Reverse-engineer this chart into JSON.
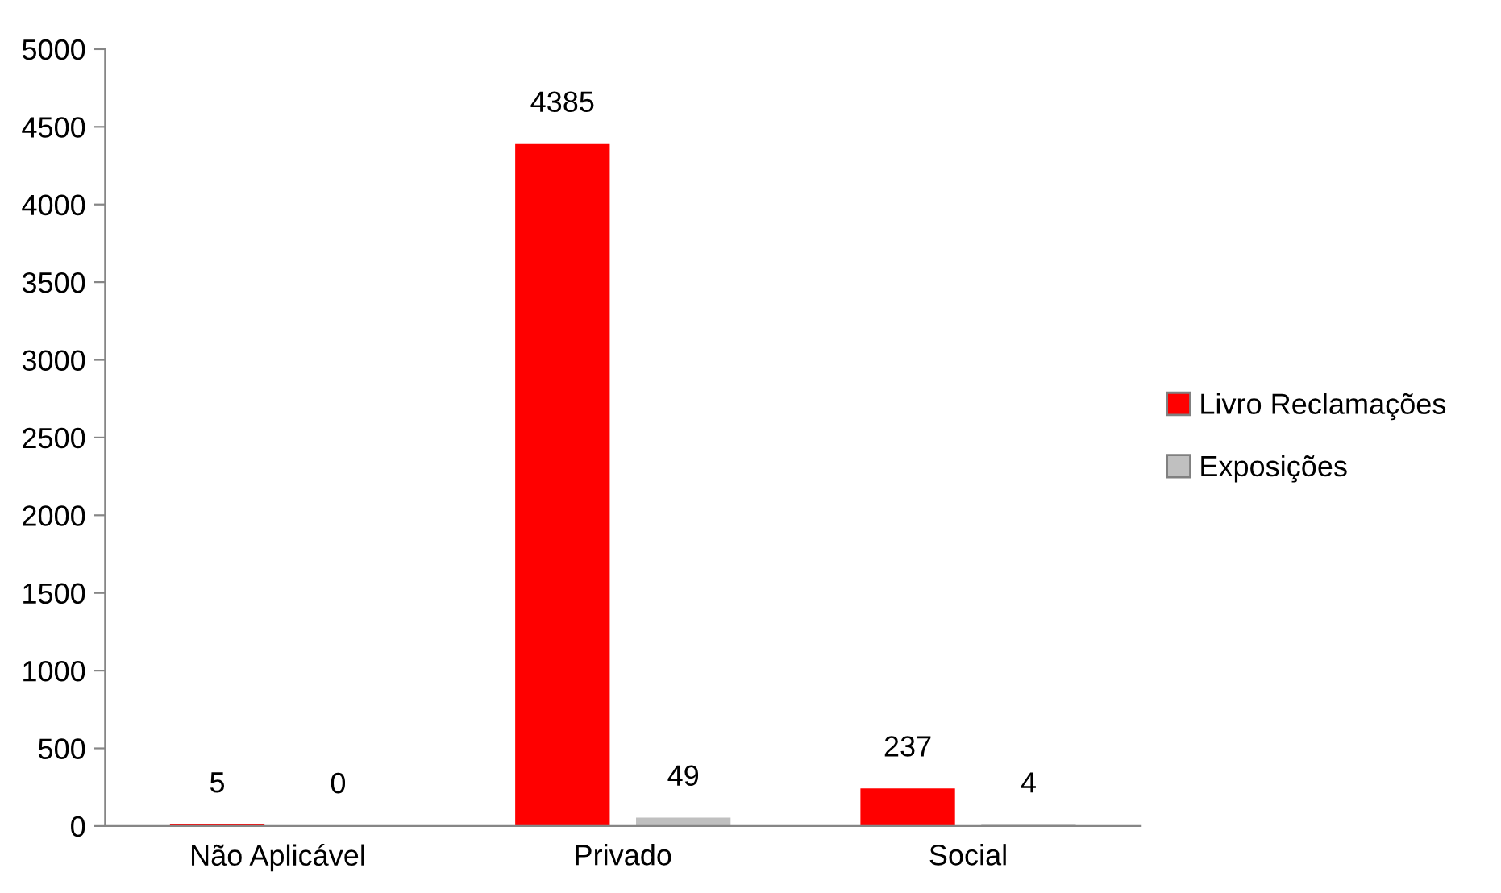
{
  "chart_data": {
    "type": "bar",
    "categories": [
      "Não Aplicável",
      "Privado",
      "Social"
    ],
    "series": [
      {
        "name": "Livro Reclamações",
        "color": "#ff0000",
        "values": [
          5,
          4385,
          237
        ]
      },
      {
        "name": "Exposições",
        "color": "#c0c0c0",
        "values": [
          0,
          49,
          4
        ]
      }
    ],
    "ylim": [
      0,
      5000
    ],
    "yticks": [
      0,
      500,
      1000,
      1500,
      2000,
      2500,
      3000,
      3500,
      4000,
      4500,
      5000
    ],
    "grid": false,
    "legend": "right",
    "data_labels": true
  }
}
